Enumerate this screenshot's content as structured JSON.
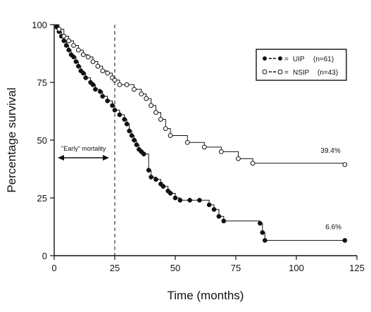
{
  "chart_data": {
    "type": "line",
    "xlabel": "Time (months)",
    "ylabel": "Percentage survival",
    "xlim": [
      0,
      125
    ],
    "ylim": [
      0,
      100
    ],
    "xticks": [
      0,
      25,
      50,
      75,
      100,
      125
    ],
    "yticks": [
      0,
      25,
      50,
      75,
      100
    ],
    "grid": false,
    "legend_position": "top-right",
    "annotations": {
      "early_mortality_label": "\"Early\" mortality",
      "early_mortality_range": [
        0,
        25
      ],
      "vertical_line_x": 25
    },
    "series": [
      {
        "name": "● – ● = UIP (n=61)",
        "label": "UIP",
        "n_label": "(n=61)",
        "marker": "filled",
        "line_style": "solid",
        "end_label": "6.6%",
        "x": [
          0,
          1,
          2,
          3,
          4,
          5,
          6,
          7,
          8,
          9,
          10,
          11,
          12,
          13,
          15,
          16,
          17,
          19,
          20,
          22,
          24,
          25,
          27,
          29,
          30,
          31,
          32,
          33,
          34,
          35,
          36,
          37,
          39,
          40,
          42,
          44,
          45,
          47,
          48,
          50,
          52,
          56,
          60,
          64,
          66,
          68,
          70,
          85,
          86,
          87,
          120
        ],
        "y": [
          100,
          99,
          97,
          95,
          93,
          91,
          89,
          87,
          86,
          84,
          82,
          80,
          79,
          77,
          75,
          74,
          72,
          71,
          69,
          67,
          65,
          63,
          61,
          59,
          57,
          54,
          52,
          50,
          48,
          46,
          45,
          44,
          37,
          34,
          33,
          31,
          30,
          28,
          27,
          25,
          24,
          24,
          24,
          22,
          20,
          17,
          15,
          14,
          10,
          6.6,
          6.6
        ]
      },
      {
        "name": "○ – ○ = NSIP (n=43)",
        "label": "NSIP",
        "n_label": "(n=43)",
        "marker": "open",
        "line_style": "solid",
        "end_label": "39.4%",
        "x": [
          0,
          2,
          4,
          6,
          8,
          10,
          12,
          14,
          16,
          18,
          20,
          22,
          24,
          25,
          27,
          30,
          33,
          36,
          38,
          40,
          42,
          44,
          46,
          48,
          55,
          62,
          69,
          76,
          82,
          120
        ],
        "y": [
          100,
          98,
          95,
          93,
          91,
          89,
          87,
          86,
          84,
          82,
          80,
          79,
          77,
          76,
          74,
          74,
          72,
          70,
          68,
          65,
          62,
          59,
          55,
          52,
          49,
          47,
          45,
          42,
          40,
          39.4
        ]
      }
    ]
  }
}
